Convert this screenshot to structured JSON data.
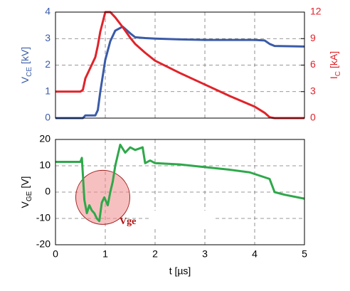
{
  "chart_data": [
    {
      "type": "line",
      "ylabel": {
        "text": "V",
        "sub": "CE",
        "unit": "[kV]"
      },
      "y2label": {
        "text": "I",
        "sub": "C",
        "unit": "[kA]"
      },
      "xlim": [
        0,
        5
      ],
      "xticks": [
        0,
        1,
        2,
        3,
        4,
        5
      ],
      "ylim": [
        0,
        4
      ],
      "yticks": [
        0,
        1,
        2,
        3,
        4
      ],
      "y2lim": [
        0,
        12
      ],
      "y2ticks": [
        0,
        3,
        6,
        9,
        12
      ],
      "grid": true,
      "x": [
        0,
        0.5,
        0.55,
        0.6,
        0.8,
        0.85,
        0.9,
        1.0,
        1.1,
        1.2,
        1.35,
        1.5,
        1.6,
        1.8,
        2,
        2.5,
        3,
        3.5,
        4,
        4.2,
        4.3,
        4.4,
        5
      ],
      "series": [
        {
          "name": "VCE",
          "color": "#3a5ba8",
          "axis": "y",
          "values": [
            0,
            0,
            0,
            0.1,
            0.1,
            0.3,
            1.0,
            2.2,
            2.9,
            3.3,
            3.45,
            3.2,
            3.05,
            3.02,
            3.0,
            2.97,
            2.95,
            2.95,
            2.95,
            2.93,
            2.8,
            2.72,
            2.7
          ]
        },
        {
          "name": "IC",
          "color": "#e0232a",
          "axis": "y2",
          "values": [
            3,
            3,
            3.2,
            4.5,
            6.9,
            8.2,
            9.8,
            12,
            12,
            11.4,
            10.3,
            9.1,
            8.4,
            7.4,
            6.5,
            5.1,
            3.8,
            2.5,
            1.3,
            0.6,
            0.1,
            0,
            0
          ]
        }
      ]
    },
    {
      "type": "line",
      "ylabel": {
        "text": "V",
        "sub": "GE",
        "unit": "[V]"
      },
      "xlabel": "t [µs]",
      "annotation": "Vge",
      "xlim": [
        0,
        5
      ],
      "xticks": [
        0,
        1,
        2,
        3,
        4,
        5
      ],
      "ylim": [
        -20,
        20
      ],
      "yticks": [
        -20,
        -10,
        0,
        10,
        20
      ],
      "grid": true,
      "x": [
        0,
        0.5,
        0.53,
        0.58,
        0.63,
        0.68,
        0.73,
        0.78,
        0.83,
        0.88,
        0.93,
        0.98,
        1.05,
        1.1,
        1.15,
        1.2,
        1.25,
        1.3,
        1.4,
        1.5,
        1.6,
        1.75,
        1.8,
        1.9,
        2,
        2.5,
        3,
        3.5,
        3.9,
        4.3,
        4.4,
        4.6,
        5
      ],
      "series": [
        {
          "name": "VGE",
          "color": "#2ea84a",
          "axis": "y",
          "values": [
            11.5,
            11.5,
            13,
            -3,
            -8,
            -5,
            -7,
            -8,
            -10,
            -11,
            -4,
            -2,
            -5,
            0,
            4,
            10,
            14,
            18,
            15,
            17,
            16,
            17,
            11,
            12,
            11,
            10.5,
            9.5,
            8.5,
            7.5,
            5,
            0,
            -1,
            -2.5
          ]
        }
      ]
    }
  ]
}
